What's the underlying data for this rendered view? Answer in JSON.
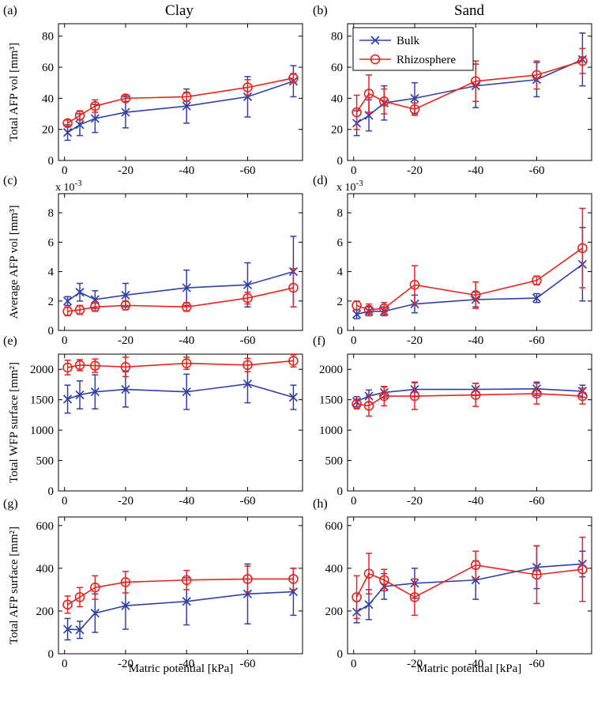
{
  "figure": {
    "col_titles": [
      "Clay",
      "Sand"
    ],
    "x_label": "Matric potential [kPa]",
    "legend": [
      {
        "name": "Bulk",
        "color": "#3140a8",
        "marker": "x"
      },
      {
        "name": "Rhizosphere",
        "color": "#e8231e",
        "marker": "o"
      }
    ]
  },
  "chart_data": [
    {
      "panel": "(a)",
      "type": "line",
      "title": "Clay",
      "ylabel": "Total AFP vol [mm³]",
      "x": [
        -1,
        -5,
        -10,
        -20,
        -40,
        -60,
        -75
      ],
      "xlim": [
        2,
        -78
      ],
      "xticks": [
        0,
        -20,
        -40,
        -60
      ],
      "xtick_labels": [
        "0",
        "-20",
        "-40",
        "-60"
      ],
      "ylim": [
        0,
        88
      ],
      "yticks": [
        0,
        20,
        40,
        60,
        80
      ],
      "ytick_labels": [
        "0",
        "20",
        "40",
        "60",
        "80"
      ],
      "series": [
        {
          "name": "Bulk",
          "values": [
            18,
            23,
            27,
            31,
            35,
            41,
            51
          ],
          "err": [
            5,
            7,
            9,
            10,
            11,
            13,
            10
          ]
        },
        {
          "name": "Rhizosphere",
          "values": [
            24,
            29,
            35,
            40,
            41,
            47,
            53
          ],
          "err": [
            2,
            3,
            4,
            2,
            3,
            5,
            3
          ]
        }
      ]
    },
    {
      "panel": "(b)",
      "type": "line",
      "title": "Sand",
      "ylabel": "",
      "x": [
        -1,
        -5,
        -10,
        -20,
        -40,
        -60,
        -75
      ],
      "xlim": [
        2,
        -78
      ],
      "xticks": [
        0,
        -20,
        -40,
        -60
      ],
      "xtick_labels": [
        "0",
        "-20",
        "-40",
        "-60"
      ],
      "ylim": [
        0,
        88
      ],
      "yticks": [
        0,
        20,
        40,
        60,
        80
      ],
      "ytick_labels": [
        "0",
        "20",
        "40",
        "60",
        "80"
      ],
      "series": [
        {
          "name": "Bulk",
          "values": [
            24,
            29,
            37,
            40,
            48,
            52,
            65
          ],
          "err": [
            8,
            10,
            11,
            10,
            14,
            11,
            17
          ]
        },
        {
          "name": "Rhizosphere",
          "values": [
            31,
            43,
            38,
            33,
            51,
            55,
            64
          ],
          "err": [
            11,
            12,
            8,
            4,
            13,
            9,
            8
          ]
        }
      ]
    },
    {
      "panel": "(c)",
      "type": "line",
      "ylabel": "Average AFP vol [mm³]",
      "y_multiplier": "x 10",
      "y_multiplier_exp": "-3",
      "x": [
        -1,
        -5,
        -10,
        -20,
        -40,
        -60,
        -75
      ],
      "xlim": [
        2,
        -78
      ],
      "xticks": [
        0,
        -20,
        -40,
        -60
      ],
      "xtick_labels": [
        "0",
        "-20",
        "-40",
        "-60"
      ],
      "ylim": [
        0,
        9.3
      ],
      "yticks": [
        0,
        2,
        4,
        6,
        8
      ],
      "ytick_labels": [
        "0",
        "2",
        "4",
        "6",
        "8"
      ],
      "series": [
        {
          "name": "Bulk",
          "values": [
            2.0,
            2.6,
            2.1,
            2.4,
            2.9,
            3.1,
            4.0
          ],
          "err": [
            0.3,
            0.6,
            0.6,
            0.8,
            1.2,
            1.5,
            2.4
          ]
        },
        {
          "name": "Rhizosphere",
          "values": [
            1.3,
            1.4,
            1.6,
            1.7,
            1.6,
            2.2,
            2.9
          ],
          "err": [
            0.3,
            0.3,
            0.3,
            0.3,
            0.3,
            0.4,
            1.3
          ]
        }
      ]
    },
    {
      "panel": "(d)",
      "type": "line",
      "ylabel": "",
      "y_multiplier": "x 10",
      "y_multiplier_exp": "-3",
      "x": [
        -1,
        -5,
        -10,
        -20,
        -40,
        -60,
        -75
      ],
      "xlim": [
        2,
        -78
      ],
      "xticks": [
        0,
        -20,
        -40,
        -60
      ],
      "xtick_labels": [
        "0",
        "-20",
        "-40",
        "-60"
      ],
      "ylim": [
        0,
        9.3
      ],
      "yticks": [
        0,
        2,
        4,
        6,
        8
      ],
      "ytick_labels": [
        "0",
        "2",
        "4",
        "6",
        "8"
      ],
      "series": [
        {
          "name": "Bulk",
          "values": [
            1.1,
            1.3,
            1.3,
            1.8,
            2.1,
            2.2,
            4.5
          ],
          "err": [
            0.3,
            0.3,
            0.3,
            0.6,
            0.5,
            0.3,
            2.5
          ]
        },
        {
          "name": "Rhizosphere",
          "values": [
            1.7,
            1.4,
            1.5,
            3.1,
            2.4,
            3.4,
            5.6
          ],
          "err": [
            0.3,
            0.4,
            0.4,
            1.3,
            0.9,
            0.3,
            2.7
          ]
        }
      ]
    },
    {
      "panel": "(e)",
      "type": "line",
      "ylabel": "Total WFP surface [mm²]",
      "x": [
        -1,
        -5,
        -10,
        -20,
        -40,
        -60,
        -75
      ],
      "xlim": [
        2,
        -78
      ],
      "xticks": [
        0,
        -20,
        -40,
        -60
      ],
      "xtick_labels": [
        "0",
        "-20",
        "-40",
        "-60"
      ],
      "ylim": [
        0,
        2250
      ],
      "yticks": [
        0,
        500,
        1000,
        1500,
        2000
      ],
      "ytick_labels": [
        "0",
        "500",
        "1000",
        "1500",
        "2000"
      ],
      "series": [
        {
          "name": "Bulk",
          "values": [
            1510,
            1580,
            1630,
            1670,
            1630,
            1760,
            1540
          ],
          "err": [
            230,
            230,
            280,
            290,
            290,
            310,
            200
          ]
        },
        {
          "name": "Rhizosphere",
          "values": [
            2030,
            2070,
            2060,
            2040,
            2100,
            2070,
            2140
          ],
          "err": [
            120,
            90,
            110,
            160,
            100,
            110,
            100
          ]
        }
      ]
    },
    {
      "panel": "(f)",
      "type": "line",
      "ylabel": "",
      "x": [
        -1,
        -5,
        -10,
        -20,
        -40,
        -60,
        -75
      ],
      "xlim": [
        2,
        -78
      ],
      "xticks": [
        0,
        -20,
        -40,
        -60
      ],
      "xtick_labels": [
        "0",
        "-20",
        "-40",
        "-60"
      ],
      "ylim": [
        0,
        2250
      ],
      "yticks": [
        0,
        500,
        1000,
        1500,
        2000
      ],
      "ytick_labels": [
        "0",
        "500",
        "1000",
        "1500",
        "2000"
      ],
      "series": [
        {
          "name": "Bulk",
          "values": [
            1470,
            1560,
            1620,
            1670,
            1670,
            1680,
            1640
          ],
          "err": [
            80,
            100,
            90,
            120,
            100,
            110,
            100
          ]
        },
        {
          "name": "Rhizosphere",
          "values": [
            1430,
            1400,
            1560,
            1560,
            1580,
            1600,
            1560
          ],
          "err": [
            80,
            170,
            160,
            220,
            190,
            170,
            130
          ]
        }
      ]
    },
    {
      "panel": "(g)",
      "type": "line",
      "ylabel": "Total AFP surface [mm²]",
      "x": [
        -1,
        -5,
        -10,
        -20,
        -40,
        -60,
        -75
      ],
      "xlim": [
        2,
        -78
      ],
      "xticks": [
        0,
        -20,
        -40,
        -60
      ],
      "xtick_labels": [
        "0",
        "-20",
        "-40",
        "-60"
      ],
      "ylim": [
        0,
        640
      ],
      "yticks": [
        0,
        200,
        400,
        600
      ],
      "ytick_labels": [
        "0",
        "200",
        "400",
        "600"
      ],
      "series": [
        {
          "name": "Bulk",
          "values": [
            115,
            112,
            190,
            225,
            245,
            280,
            290
          ],
          "err": [
            50,
            40,
            90,
            110,
            110,
            140,
            110
          ]
        },
        {
          "name": "Rhizosphere",
          "values": [
            230,
            265,
            310,
            335,
            345,
            350,
            350
          ],
          "err": [
            40,
            45,
            55,
            50,
            45,
            60,
            50
          ]
        }
      ]
    },
    {
      "panel": "(h)",
      "type": "line",
      "ylabel": "",
      "x": [
        -1,
        -5,
        -10,
        -20,
        -40,
        -60,
        -75
      ],
      "xlim": [
        2,
        -78
      ],
      "xticks": [
        0,
        -20,
        -40,
        -60
      ],
      "xtick_labels": [
        "0",
        "-20",
        "-40",
        "-60"
      ],
      "ylim": [
        0,
        640
      ],
      "yticks": [
        0,
        200,
        400,
        600
      ],
      "ytick_labels": [
        "0",
        "200",
        "400",
        "600"
      ],
      "series": [
        {
          "name": "Bulk",
          "values": [
            195,
            230,
            315,
            330,
            345,
            405,
            420
          ],
          "err": [
            50,
            70,
            60,
            70,
            90,
            100,
            60
          ]
        },
        {
          "name": "Rhizosphere",
          "values": [
            265,
            375,
            345,
            265,
            415,
            370,
            395
          ],
          "err": [
            100,
            95,
            50,
            85,
            65,
            135,
            150
          ]
        }
      ]
    }
  ]
}
